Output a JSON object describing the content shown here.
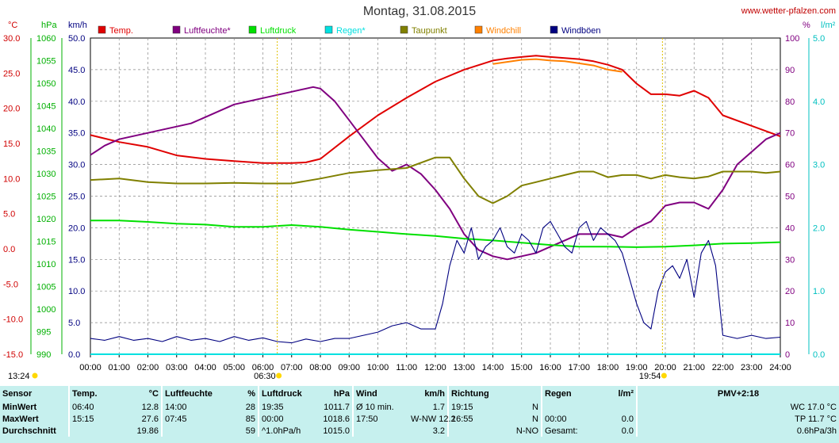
{
  "chart_data": {
    "type": "line",
    "title": "Montag, 31.08.2015",
    "source": "www.wetter-pfalzen.com",
    "x_ticks": [
      "00:00",
      "01:00",
      "02:00",
      "03:00",
      "04:00",
      "05:00",
      "06:00",
      "07:00",
      "08:00",
      "09:00",
      "10:00",
      "11:00",
      "12:00",
      "13:00",
      "14:00",
      "15:00",
      "16:00",
      "17:00",
      "18:00",
      "19:00",
      "20:00",
      "21:00",
      "22:00",
      "23:00",
      "24:00"
    ],
    "xlim": [
      0,
      24
    ],
    "axes": [
      {
        "unit": "°C",
        "color": "#d00000",
        "ticks": [
          "30.0",
          "25.0",
          "20.0",
          "15.0",
          "10.0",
          "5.0",
          "0.0",
          "-5.0",
          "-10.0",
          "-15.0"
        ],
        "range": [
          -15,
          30
        ]
      },
      {
        "unit": "hPa",
        "color": "#00b000",
        "ticks": [
          "1060",
          "1055",
          "1050",
          "1045",
          "1040",
          "1035",
          "1030",
          "1025",
          "1020",
          "1015",
          "1010",
          "1005",
          "1000",
          "995",
          "990"
        ],
        "range": [
          990,
          1060
        ]
      },
      {
        "unit": "km/h",
        "color": "#000080",
        "ticks": [
          "50.0",
          "45.0",
          "40.0",
          "35.0",
          "30.0",
          "25.0",
          "20.0",
          "15.0",
          "10.0",
          "5.0",
          "0.0"
        ],
        "range": [
          0,
          50
        ]
      },
      {
        "unit": "%",
        "color": "#800080",
        "ticks": [
          "100",
          "90",
          "80",
          "70",
          "60",
          "50",
          "40",
          "30",
          "20",
          "10",
          "0"
        ],
        "range": [
          0,
          100
        ]
      },
      {
        "unit": "l/m²",
        "color": "#00c0c0",
        "ticks": [
          "5.0",
          "4.0",
          "3.0",
          "2.0",
          "1.0",
          "0.0"
        ],
        "range": [
          0,
          5
        ]
      }
    ],
    "legend": [
      {
        "name": "Temp.",
        "color": "#e00000"
      },
      {
        "name": "Luftfeuchte*",
        "color": "#800080"
      },
      {
        "name": "Luftdruck",
        "color": "#00e000"
      },
      {
        "name": "Regen*",
        "color": "#00e0e0"
      },
      {
        "name": "Taupunkt",
        "color": "#808000"
      },
      {
        "name": "Windchill",
        "color": "#ff8000"
      },
      {
        "name": "Windböen",
        "color": "#000080"
      }
    ],
    "sunrise": {
      "label": "06:30",
      "hour": 6.5
    },
    "sunset": {
      "label": "19:54",
      "hour": 19.9
    },
    "moonrise": {
      "label": "13:24"
    },
    "series": [
      {
        "name": "Temp.",
        "axis": 0,
        "color": "#e00000",
        "x": [
          0,
          1,
          2,
          3,
          4,
          5,
          6,
          7,
          7.5,
          8,
          9,
          10,
          11,
          12,
          13,
          14,
          14.5,
          15,
          15.5,
          16,
          17,
          17.5,
          18,
          18.5,
          19,
          19.5,
          20,
          20.5,
          21,
          21.5,
          22,
          23,
          24
        ],
        "y": [
          16.2,
          15.2,
          14.5,
          13.3,
          12.8,
          12.5,
          12.2,
          12.2,
          12.3,
          12.8,
          16,
          19,
          21.5,
          23.8,
          25.5,
          26.8,
          27.1,
          27.3,
          27.5,
          27.3,
          27,
          26.7,
          26.2,
          25.5,
          23.5,
          22,
          22,
          21.8,
          22.5,
          21.5,
          19,
          17.5,
          16
        ]
      },
      {
        "name": "Windchill",
        "axis": 0,
        "color": "#ff8000",
        "x": [
          14,
          14.5,
          15,
          15.5,
          16,
          16.5,
          17,
          17.5,
          18,
          18.5
        ],
        "y": [
          26.3,
          26.6,
          26.9,
          27.0,
          26.8,
          26.7,
          26.4,
          26.1,
          25.5,
          25.2
        ]
      },
      {
        "name": "Luftfeuchte*",
        "axis": 3,
        "color": "#800080",
        "x": [
          0,
          0.5,
          1,
          1.5,
          2,
          2.5,
          3,
          3.5,
          4,
          4.5,
          5,
          5.5,
          6,
          6.5,
          7,
          7.5,
          7.75,
          8,
          8.5,
          9,
          9.5,
          10,
          10.5,
          11,
          11.5,
          12,
          12.5,
          13,
          13.5,
          14,
          14.5,
          15,
          15.5,
          16,
          16.5,
          17,
          17.5,
          18,
          18.5,
          19,
          19.5,
          20,
          20.5,
          21,
          21.5,
          22,
          22.5,
          23,
          23.5,
          24
        ],
        "y": [
          63,
          66,
          68,
          69,
          70,
          71,
          72,
          73,
          75,
          77,
          79,
          80,
          81,
          82,
          83,
          84,
          84.5,
          84,
          80,
          74,
          68,
          62,
          58,
          60,
          57,
          52,
          46,
          38,
          33,
          31,
          30,
          31,
          32,
          34,
          36,
          38,
          38,
          38,
          37,
          40,
          42,
          47,
          48,
          48,
          46,
          52,
          60,
          64,
          68,
          70
        ]
      },
      {
        "name": "Taupunkt",
        "axis": 0,
        "color": "#808000",
        "x": [
          0,
          1,
          2,
          3,
          4,
          5,
          6,
          7,
          8,
          9,
          10,
          11,
          12,
          12.5,
          13,
          13.5,
          14,
          14.5,
          15,
          15.5,
          16,
          16.5,
          17,
          17.5,
          18,
          18.5,
          19,
          19.5,
          20,
          20.5,
          21,
          21.5,
          22,
          22.5,
          23,
          23.5,
          24
        ],
        "y": [
          9.8,
          10,
          9.5,
          9.3,
          9.3,
          9.4,
          9.3,
          9.3,
          10,
          10.8,
          11.2,
          11.5,
          13,
          13,
          10,
          7.5,
          6.5,
          7.5,
          9,
          9.5,
          10,
          10.5,
          11,
          11,
          10.2,
          10.5,
          10.5,
          10,
          10.5,
          10.2,
          10,
          10.3,
          11,
          11,
          11,
          10.8,
          11
        ]
      },
      {
        "name": "Luftdruck",
        "axis": 1,
        "color": "#00e000",
        "x": [
          0,
          1,
          2,
          3,
          4,
          5,
          6,
          7,
          8,
          9,
          10,
          11,
          12,
          13,
          14,
          15,
          16,
          17,
          18,
          19,
          20,
          21,
          22,
          23,
          24
        ],
        "y": [
          1019.6,
          1019.6,
          1019.3,
          1018.9,
          1018.7,
          1018.2,
          1018.2,
          1018.6,
          1018.2,
          1017.6,
          1017.1,
          1016.6,
          1016.2,
          1015.6,
          1015.2,
          1014.7,
          1014.2,
          1013.8,
          1013.8,
          1013.7,
          1013.8,
          1014.1,
          1014.5,
          1014.6,
          1014.8
        ]
      },
      {
        "name": "Windböen",
        "axis": 2,
        "color": "#000080",
        "jagged": true,
        "x": [
          0,
          0.5,
          1,
          1.5,
          2,
          2.5,
          3,
          3.5,
          4,
          4.5,
          5,
          5.5,
          6,
          6.5,
          7,
          7.5,
          8,
          8.5,
          9,
          9.5,
          10,
          10.5,
          11,
          11.5,
          12,
          12.25,
          12.5,
          12.75,
          13,
          13.25,
          13.5,
          13.75,
          14,
          14.25,
          14.5,
          14.75,
          15,
          15.25,
          15.5,
          15.75,
          16,
          16.25,
          16.5,
          16.75,
          17,
          17.25,
          17.5,
          17.75,
          18,
          18.25,
          18.5,
          18.75,
          19,
          19.25,
          19.5,
          19.75,
          20,
          20.25,
          20.5,
          20.75,
          21,
          21.25,
          21.5,
          21.75,
          22,
          22.5,
          23,
          23.5,
          24
        ],
        "y": [
          2.5,
          2.2,
          2.8,
          2.2,
          2.5,
          2.0,
          2.8,
          2.2,
          2.5,
          2.0,
          2.8,
          2.2,
          2.6,
          2.0,
          1.8,
          2.4,
          2.0,
          2.5,
          2.5,
          3.0,
          3.5,
          4.5,
          5,
          4,
          4,
          8,
          14,
          18,
          16,
          20,
          15,
          17,
          18,
          20,
          17,
          16,
          19,
          18,
          16,
          20,
          21,
          19,
          17,
          16,
          20,
          21,
          18,
          20,
          19,
          18,
          16,
          12,
          8,
          5,
          4,
          10,
          13,
          14,
          12,
          15,
          9,
          16,
          18,
          14,
          3,
          2.5,
          3,
          2.5,
          2.7
        ]
      },
      {
        "name": "Regen*",
        "axis": 4,
        "color": "#00e0e0",
        "x": [
          0,
          24
        ],
        "y": [
          0,
          0
        ]
      }
    ]
  },
  "stats": {
    "headers": [
      "Sensor",
      "Temp.",
      "°C",
      "Luftfeuchte",
      "%",
      "Luftdruck",
      "hPa",
      "Wind",
      "km/h",
      "Richtung",
      "",
      "Regen",
      "l/m²",
      "PMV+2:18"
    ],
    "rows": [
      [
        "MinWert",
        "06:40",
        "12.8",
        "14:00",
        "28",
        "19:35",
        "1011.7",
        "Ø 10 min.",
        "1.7",
        "19:15",
        "N",
        "",
        "",
        "WC 17.0 °C"
      ],
      [
        "MaxWert",
        "15:15",
        "27.6",
        "07:45",
        "85",
        "00:00",
        "1018.6",
        "17:50",
        "W-NW 12.2",
        "16:55",
        "N",
        "00:00",
        "0.0",
        "TP 11.7 °C"
      ],
      [
        "Durchschnitt",
        "",
        "19.86",
        "",
        "59",
        "^1.0hPa/h",
        "1015.0",
        "",
        "3.2",
        "",
        "N-NO",
        "Gesamt:",
        "0.0",
        "0.6hPa/3h"
      ]
    ]
  }
}
